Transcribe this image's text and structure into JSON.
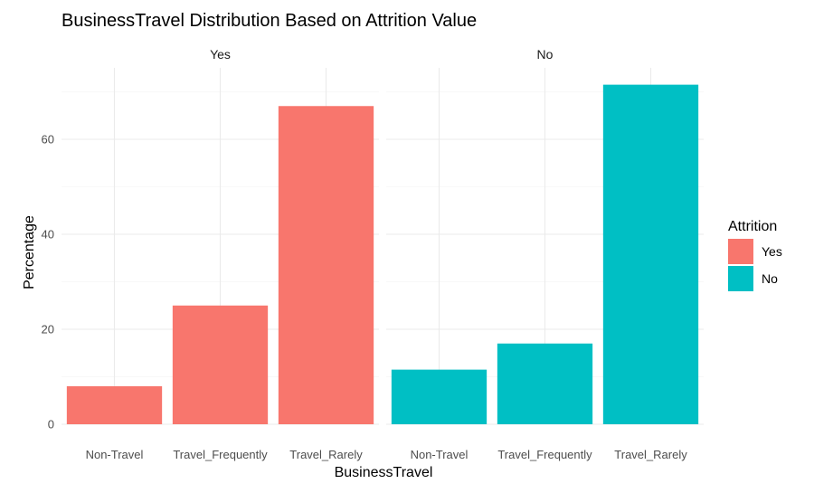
{
  "chart_data": {
    "type": "bar",
    "title": "BusinessTravel Distribution Based on Attrition Value",
    "xlabel": "BusinessTravel",
    "ylabel": "Percentage",
    "categories": [
      "Non-Travel",
      "Travel_Frequently",
      "Travel_Rarely"
    ],
    "facets": [
      {
        "label": "Yes",
        "color": "#F8766D",
        "values": [
          8,
          25,
          67
        ]
      },
      {
        "label": "No",
        "color": "#00BFC4",
        "values": [
          11.5,
          17,
          71.5
        ]
      }
    ],
    "yticks": [
      0,
      20,
      40,
      60
    ],
    "ylim": [
      0,
      72
    ],
    "grid": true,
    "legend": {
      "title": "Attrition",
      "position": "right",
      "entries": [
        {
          "label": "Yes",
          "color": "#F8766D"
        },
        {
          "label": "No",
          "color": "#00BFC4"
        }
      ]
    }
  }
}
